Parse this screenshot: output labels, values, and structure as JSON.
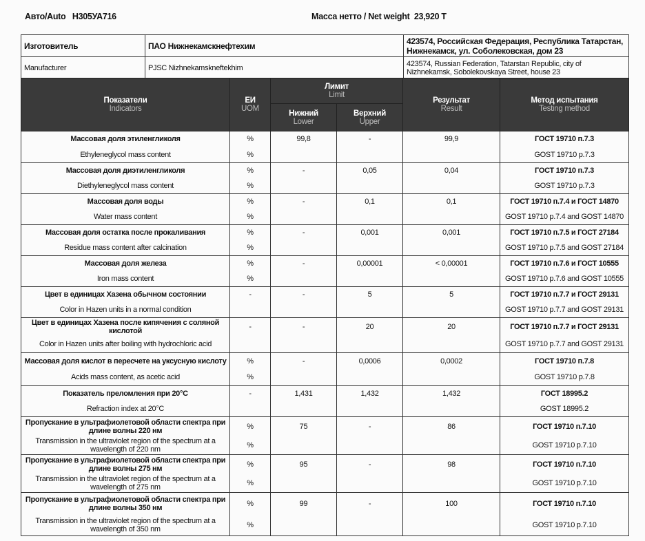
{
  "header": {
    "auto_label": "Авто/Auto",
    "auto_value": "Н305УА716",
    "weight_label": "Масса нетто / Net weight",
    "weight_value": "23,920 Т"
  },
  "manufacturer": {
    "ru_label": "Изготовитель",
    "ru_name": "ПАО Нижнекамскнефтехим",
    "ru_address": "423574, Российская Федерация, Республика Татарстан, Нижнекамск, ул. Соболековская, дом 23",
    "en_label": "Manufacturer",
    "en_name": "PJSC Nizhnekamskneftekhim",
    "en_address": "423574, Russian Federation, Tatarstan Republic, city of Nizhnekamsk, Sobolekovskaya Street, house 23"
  },
  "columns": {
    "indicators_ru": "Показатели",
    "indicators_en": "Indicators",
    "uom_ru": "ЕИ",
    "uom_en": "UOM",
    "limit_ru": "Лимит",
    "limit_en": "Limit",
    "lower_ru": "Нижний",
    "lower_en": "Lower",
    "upper_ru": "Верхний",
    "upper_en": "Upper",
    "result_ru": "Результат",
    "result_en": "Result",
    "method_ru": "Метод испытания",
    "method_en": "Testing method"
  },
  "rows": [
    {
      "ru": "Массовая доля этиленгликоля",
      "en": "Ethyleneglycol mass content",
      "uom1": "%",
      "uom2": "%",
      "lower": "99,8",
      "upper": "-",
      "result": "99,9",
      "method_ru": "ГОСТ 19710 п.7.3",
      "method_en": "GOST 19710 p.7.3"
    },
    {
      "ru": "Массовая доля диэтиленгликоля",
      "en": "Diethyleneglycol mass content",
      "uom1": "%",
      "uom2": "%",
      "lower": "-",
      "upper": "0,05",
      "result": "0,04",
      "method_ru": "ГОСТ 19710 п.7.3",
      "method_en": "GOST 19710 p.7.3"
    },
    {
      "ru": "Массовая доля воды",
      "en": "Water mass content",
      "uom1": "%",
      "uom2": "%",
      "lower": "-",
      "upper": "0,1",
      "result": "0,1",
      "method_ru": "ГОСТ 19710 п.7.4 и ГОСТ 14870",
      "method_en": "GOST 19710 p.7.4 and GOST 14870"
    },
    {
      "ru": "Массовая доля остатка после прокаливания",
      "en": "Residue mass content after calcination",
      "uom1": "%",
      "uom2": "%",
      "lower": "-",
      "upper": "0,001",
      "result": "0,001",
      "method_ru": "ГОСТ 19710 п.7.5 и ГОСТ 27184",
      "method_en": "GOST 19710 p.7.5 and GOST 27184"
    },
    {
      "ru": "Массовая доля железа",
      "en": "Iron mass content",
      "uom1": "%",
      "uom2": "%",
      "lower": "-",
      "upper": "0,00001",
      "result": "< 0,00001",
      "method_ru": "ГОСТ 19710 п.7.6 и ГОСТ 10555",
      "method_en": "GOST 19710 p.7.6 and GOST 10555"
    },
    {
      "ru": "Цвет в единицах Хазена обычном состоянии",
      "en": "Color in Hazen units in a normal condition",
      "uom1": "-",
      "uom2": "",
      "lower": "-",
      "upper": "5",
      "result": "5",
      "method_ru": "ГОСТ 19710 п.7.7 и ГОСТ 29131",
      "method_en": "GOST 19710 p.7.7 and GOST 29131"
    },
    {
      "ru": "Цвет в единицах Хазена после кипячения с соляной кислотой",
      "en": "Color in Hazen units after boiling with hydrochloric acid",
      "uom1": "-",
      "uom2": "",
      "lower": "-",
      "upper": "20",
      "result": "20",
      "method_ru": "ГОСТ 19710 п.7.7 и ГОСТ 29131",
      "method_en": "GOST 19710 p.7.7 and GOST 29131"
    },
    {
      "ru": "Массовая доля кислот в пересчете на уксусную кислоту",
      "en": "Acids mass content, as acetic acid",
      "uom1": "%",
      "uom2": "%",
      "lower": "-",
      "upper": "0,0006",
      "result": "0,0002",
      "method_ru": "ГОСТ 19710 п.7.8",
      "method_en": "GOST 19710 p.7.8"
    },
    {
      "ru": "Показатель преломления при 20°С",
      "en": "Refraction index at 20°C",
      "uom1": "-",
      "uom2": "",
      "lower": "1,431",
      "upper": "1,432",
      "result": "1,432",
      "method_ru": "ГОСТ 18995.2",
      "method_en": "GOST 18995.2"
    },
    {
      "ru": "Пропускание в ультрафиолетовой области спектра при длине волны 220 нм",
      "en": "Transmission in the ultraviolet region of the spectrum at a wavelength of 220 nm",
      "uom1": "%",
      "uom2": "%",
      "lower": "75",
      "upper": "-",
      "result": "86",
      "method_ru": "ГОСТ 19710 п.7.10",
      "method_en": "GOST 19710 p.7.10"
    },
    {
      "ru": "Пропускание в ультрафиолетовой области спектра при длине волны 275 нм",
      "en": "Transmission in the ultraviolet region of the spectrum at a wavelength of 275 nm",
      "uom1": "%",
      "uom2": "%",
      "lower": "95",
      "upper": "-",
      "result": "98",
      "method_ru": "ГОСТ 19710 п.7.10",
      "method_en": "GOST 19710 p.7.10"
    },
    {
      "ru": "Пропускание в ультрафиолетовой области спектра при длине волны 350 нм",
      "en": "Transmission in the ultraviolet region of the spectrum at a wavelength of 350 nm",
      "uom1": "%",
      "uom2": "%",
      "lower": "99",
      "upper": "-",
      "result": "100",
      "method_ru": "ГОСТ 19710 п.7.10",
      "method_en": "GOST 19710 p.7.10"
    }
  ]
}
